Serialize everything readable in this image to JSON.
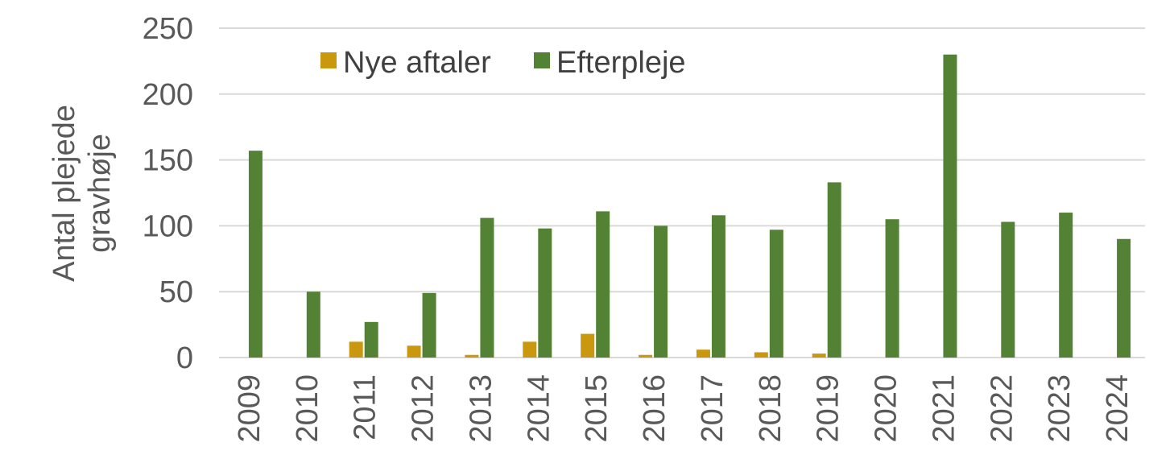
{
  "chart_data": {
    "type": "bar",
    "title": "",
    "xlabel": "",
    "ylabel_lines": [
      "Antal plejede",
      "gravhøje"
    ],
    "ylim": [
      0,
      250
    ],
    "yticks": [
      0,
      50,
      100,
      150,
      200,
      250
    ],
    "grid": true,
    "legend_position": "top-left",
    "categories": [
      "2009",
      "2010",
      "2011",
      "2012",
      "2013",
      "2014",
      "2015",
      "2016",
      "2017",
      "2018",
      "2019",
      "2020",
      "2021",
      "2022",
      "2023",
      "2024"
    ],
    "series": [
      {
        "name": "Nye aftaler",
        "color": "#c9980f",
        "values": [
          0,
          0,
          12,
          9,
          2,
          12,
          18,
          2,
          6,
          4,
          3,
          0,
          0,
          0,
          0,
          0
        ]
      },
      {
        "name": "Efterpleje",
        "color": "#548235",
        "values": [
          157,
          50,
          27,
          49,
          106,
          98,
          111,
          100,
          108,
          97,
          133,
          105,
          230,
          103,
          110,
          90
        ]
      }
    ]
  }
}
